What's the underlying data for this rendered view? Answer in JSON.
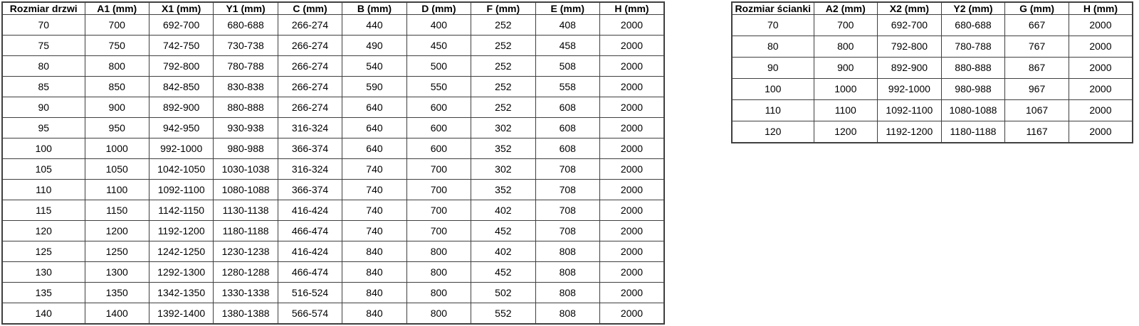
{
  "door_table": {
    "name": "door-size-table",
    "headers": [
      "Rozmiar drzwi",
      "A1 (mm)",
      "X1 (mm)",
      "Y1 (mm)",
      "C (mm)",
      "B (mm)",
      "D (mm)",
      "F (mm)",
      "E (mm)",
      "H (mm)"
    ],
    "rows": [
      [
        "70",
        "700",
        "692-700",
        "680-688",
        "266-274",
        "440",
        "400",
        "252",
        "408",
        "2000"
      ],
      [
        "75",
        "750",
        "742-750",
        "730-738",
        "266-274",
        "490",
        "450",
        "252",
        "458",
        "2000"
      ],
      [
        "80",
        "800",
        "792-800",
        "780-788",
        "266-274",
        "540",
        "500",
        "252",
        "508",
        "2000"
      ],
      [
        "85",
        "850",
        "842-850",
        "830-838",
        "266-274",
        "590",
        "550",
        "252",
        "558",
        "2000"
      ],
      [
        "90",
        "900",
        "892-900",
        "880-888",
        "266-274",
        "640",
        "600",
        "252",
        "608",
        "2000"
      ],
      [
        "95",
        "950",
        "942-950",
        "930-938",
        "316-324",
        "640",
        "600",
        "302",
        "608",
        "2000"
      ],
      [
        "100",
        "1000",
        "992-1000",
        "980-988",
        "366-374",
        "640",
        "600",
        "352",
        "608",
        "2000"
      ],
      [
        "105",
        "1050",
        "1042-1050",
        "1030-1038",
        "316-324",
        "740",
        "700",
        "302",
        "708",
        "2000"
      ],
      [
        "110",
        "1100",
        "1092-1100",
        "1080-1088",
        "366-374",
        "740",
        "700",
        "352",
        "708",
        "2000"
      ],
      [
        "115",
        "1150",
        "1142-1150",
        "1130-1138",
        "416-424",
        "740",
        "700",
        "402",
        "708",
        "2000"
      ],
      [
        "120",
        "1200",
        "1192-1200",
        "1180-1188",
        "466-474",
        "740",
        "700",
        "452",
        "708",
        "2000"
      ],
      [
        "125",
        "1250",
        "1242-1250",
        "1230-1238",
        "416-424",
        "840",
        "800",
        "402",
        "808",
        "2000"
      ],
      [
        "130",
        "1300",
        "1292-1300",
        "1280-1288",
        "466-474",
        "840",
        "800",
        "452",
        "808",
        "2000"
      ],
      [
        "135",
        "1350",
        "1342-1350",
        "1330-1338",
        "516-524",
        "840",
        "800",
        "502",
        "808",
        "2000"
      ],
      [
        "140",
        "1400",
        "1392-1400",
        "1380-1388",
        "566-574",
        "840",
        "800",
        "552",
        "808",
        "2000"
      ]
    ]
  },
  "wall_table": {
    "name": "wall-size-table",
    "headers": [
      "Rozmiar ścianki",
      "A2 (mm)",
      "X2 (mm)",
      "Y2 (mm)",
      "G (mm)",
      "H (mm)"
    ],
    "rows": [
      [
        "70",
        "700",
        "692-700",
        "680-688",
        "667",
        "2000"
      ],
      [
        "80",
        "800",
        "792-800",
        "780-788",
        "767",
        "2000"
      ],
      [
        "90",
        "900",
        "892-900",
        "880-888",
        "867",
        "2000"
      ],
      [
        "100",
        "1000",
        "992-1000",
        "980-988",
        "967",
        "2000"
      ],
      [
        "110",
        "1100",
        "1092-1100",
        "1080-1088",
        "1067",
        "2000"
      ],
      [
        "120",
        "1200",
        "1192-1200",
        "1180-1188",
        "1167",
        "2000"
      ]
    ]
  },
  "colors": {
    "border": "#3f3f3f",
    "text": "#000000",
    "background": "#ffffff"
  }
}
